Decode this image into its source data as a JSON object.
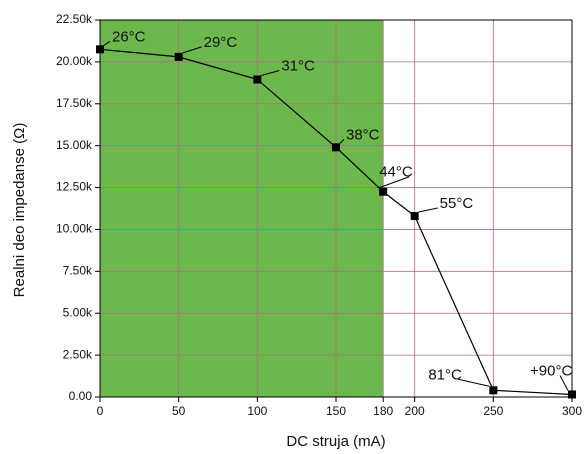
{
  "chart_data": {
    "type": "line",
    "x_label": "DC struja (mA)",
    "y_label": "Realni deo impedanse (Ω)",
    "x": [
      0,
      50,
      100,
      150,
      180,
      200,
      250,
      300
    ],
    "series": [
      {
        "color": "#000000",
        "values": [
          20750,
          20300,
          18950,
          14900,
          12250,
          10800,
          400,
          150
        ]
      }
    ],
    "point_labels": [
      "26°C",
      "29°C",
      "31°C",
      "38°C",
      "44°C",
      "55°C",
      "81°C",
      "+90°C"
    ],
    "shaded_xlim": [
      0,
      180
    ],
    "shade_color": "#6db84d",
    "xlim": [
      0,
      300
    ],
    "xticks": [
      0,
      50,
      100,
      150,
      180,
      200,
      250,
      300
    ],
    "ylim": [
      0,
      22500
    ],
    "yticks": [
      {
        "value": 0,
        "label": "0.00"
      },
      {
        "value": 2500,
        "label": "2.50k"
      },
      {
        "value": 5000,
        "label": "5.00k"
      },
      {
        "value": 7500,
        "label": "7.50k"
      },
      {
        "value": 10000,
        "label": "10.00k"
      },
      {
        "value": 12500,
        "label": "12.50k"
      },
      {
        "value": 15000,
        "label": "15.00k"
      },
      {
        "value": 17500,
        "label": "17.50k"
      },
      {
        "value": 20000,
        "label": "20.00k"
      },
      {
        "value": 22500,
        "label": "22.50k"
      }
    ],
    "grid": true,
    "grid_color": "#b06b86"
  }
}
